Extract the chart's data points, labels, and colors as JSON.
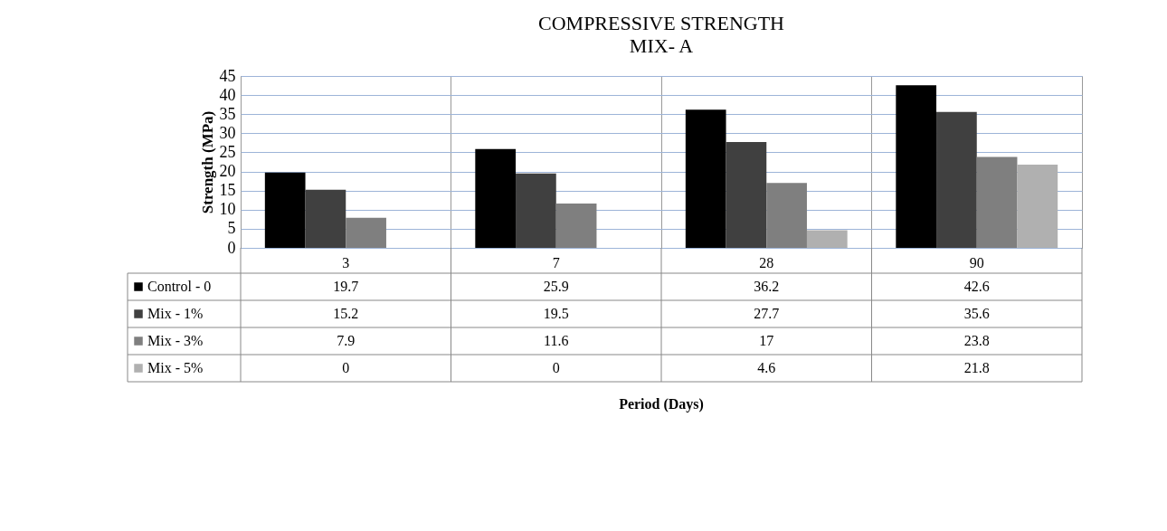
{
  "chart_data": {
    "type": "bar",
    "title": "COMPRESSIVE  STRENGTH",
    "subtitle": "MIX- A",
    "annotations": [
      "Period (Days)"
    ],
    "ylabel": "Strength (MPa)",
    "categories": [
      "3",
      "7",
      "28",
      "90"
    ],
    "series": [
      {
        "name": "Control - 0",
        "color": "#000000",
        "values": [
          19.7,
          25.9,
          36.2,
          42.6
        ]
      },
      {
        "name": "Mix - 1%",
        "color": "#404040",
        "values": [
          15.2,
          19.5,
          27.7,
          35.6
        ]
      },
      {
        "name": "Mix - 3%",
        "color": "#7f7f7f",
        "values": [
          7.9,
          11.6,
          17,
          23.8
        ]
      },
      {
        "name": "Mix - 5%",
        "color": "#b0b0b0",
        "values": [
          0,
          0,
          4.6,
          21.8
        ]
      }
    ],
    "ylim": [
      0,
      45
    ],
    "yticks": [
      0,
      5,
      10,
      15,
      20,
      25,
      30,
      35,
      40,
      45
    ],
    "grid": true,
    "legend": "left",
    "data_labels": true
  }
}
